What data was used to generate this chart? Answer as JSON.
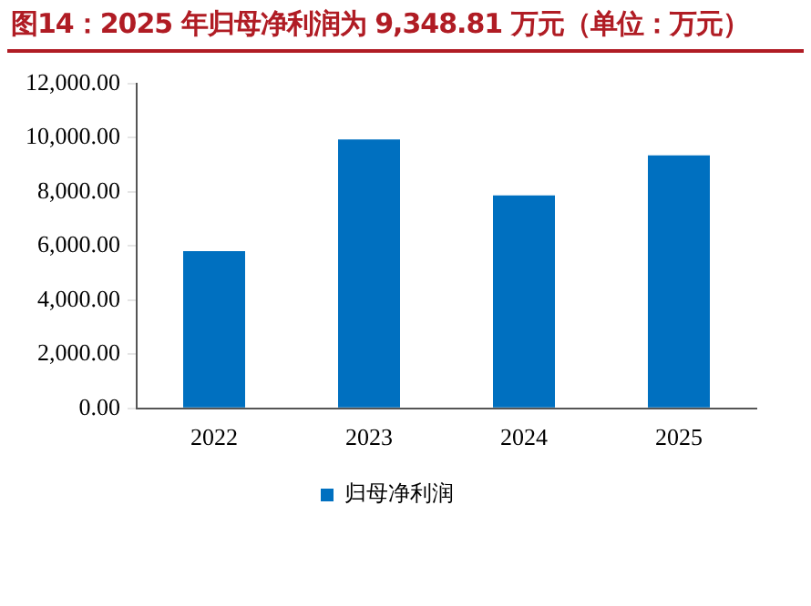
{
  "chart_data": {
    "type": "bar",
    "title": "图14：2025 年归母净利润为 9,348.81 万元（单位：万元）",
    "categories": [
      "2022",
      "2023",
      "2024",
      "2025"
    ],
    "series": [
      {
        "name": "归母净利润",
        "color": "#0070c0",
        "values": [
          5810,
          9940,
          7870,
          9348.81
        ]
      }
    ],
    "ylim": [
      0,
      12000
    ],
    "yticks": [
      {
        "value": 0,
        "label": "0.00"
      },
      {
        "value": 2000,
        "label": "2,000.00"
      },
      {
        "value": 4000,
        "label": "4,000.00"
      },
      {
        "value": 6000,
        "label": "6,000.00"
      },
      {
        "value": 8000,
        "label": "8,000.00"
      },
      {
        "value": 10000,
        "label": "10,000.00"
      },
      {
        "value": 12000,
        "label": "12,000.00"
      }
    ],
    "grid": false,
    "legend": "bottom"
  }
}
